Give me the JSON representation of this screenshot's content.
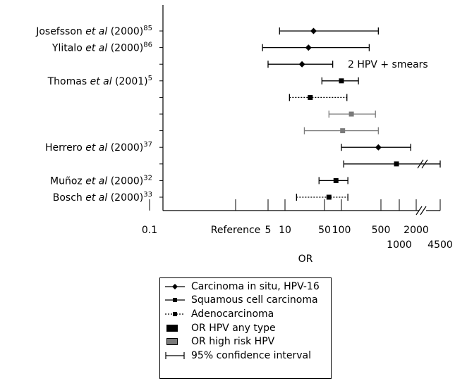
{
  "chart_data": {
    "type": "forest",
    "xlabel": "OR",
    "x_scale": "log",
    "xlim": [
      0.1,
      4500
    ],
    "x_ticks": [
      {
        "value": 0.1,
        "label": "0.1"
      },
      {
        "value": 1,
        "label": "Reference"
      },
      {
        "value": 5,
        "label": "5"
      },
      {
        "value": 10,
        "label": "10"
      },
      {
        "value": 50,
        "label": "50"
      },
      {
        "value": 100,
        "label": "100"
      },
      {
        "value": 500,
        "label": "500"
      },
      {
        "value": 1000,
        "label": "1000"
      },
      {
        "value": 2000,
        "label": "2000"
      },
      {
        "value": 4500,
        "label": "4500"
      }
    ],
    "axis_break": true,
    "rows": [
      {
        "study": "Josefsson",
        "suffix": " (2000)",
        "ref": "85",
        "outcome": "Carcinoma in situ, HPV-16",
        "hpv": "any type",
        "or": 32,
        "ci": [
          8,
          450
        ]
      },
      {
        "study": "Ylitalo",
        "suffix": " (2000)",
        "ref": "86",
        "outcome": "Carcinoma in situ, HPV-16",
        "hpv": "any type",
        "or": 26,
        "ci": [
          3.8,
          310
        ]
      },
      {
        "study": "",
        "suffix": "",
        "ref": "",
        "outcome": "Carcinoma in situ, HPV-16",
        "hpv": "any type",
        "or": 20,
        "ci": [
          5,
          70
        ],
        "annotation": "2 HPV + smears"
      },
      {
        "study": "Thomas",
        "suffix": " (2001)",
        "ref": "5",
        "outcome": "Squamous cell carcinoma",
        "hpv": "any type",
        "or": 100,
        "ci": [
          45,
          200
        ]
      },
      {
        "study": "",
        "suffix": "",
        "ref": "",
        "outcome": "Adenocarcinoma",
        "hpv": "any type",
        "or": 28,
        "ci": [
          12,
          125
        ]
      },
      {
        "study": "",
        "suffix": "",
        "ref": "",
        "outcome": "Squamous cell carcinoma",
        "hpv": "high risk",
        "or": 150,
        "ci": [
          60,
          400
        ]
      },
      {
        "study": "",
        "suffix": "",
        "ref": "",
        "outcome": "Squamous cell carcinoma",
        "hpv": "high risk",
        "or": 105,
        "ci": [
          22,
          450
        ]
      },
      {
        "study": "Herrero",
        "suffix": " (2000)",
        "ref": "37",
        "outcome": "Carcinoma in situ, HPV-16",
        "hpv": "any type",
        "or": 450,
        "ci": [
          100,
          1600
        ]
      },
      {
        "study": "",
        "suffix": "",
        "ref": "",
        "outcome": "Squamous cell carcinoma",
        "hpv": "any type",
        "or": 900,
        "ci": [
          110,
          4500
        ]
      },
      {
        "study": "Muñoz",
        "suffix": " (2000)",
        "ref": "32",
        "outcome": "Squamous cell carcinoma",
        "hpv": "any type",
        "or": 80,
        "ci": [
          40,
          130
        ]
      },
      {
        "study": "Bosch",
        "suffix": " (2000)",
        "ref": "33",
        "outcome": "Adenocarcinoma",
        "hpv": "any type",
        "or": 60,
        "ci": [
          16,
          130
        ]
      }
    ],
    "legend": [
      {
        "key": "cis",
        "label": "Carcinoma in situ, HPV-16"
      },
      {
        "key": "scc",
        "label": "Squamous cell carcinoma"
      },
      {
        "key": "adeno",
        "label": "Adenocarcinoma"
      },
      {
        "key": "any",
        "label": "OR HPV any type"
      },
      {
        "key": "high",
        "label": "OR high risk HPV"
      },
      {
        "key": "ci",
        "label": "95% confidence interval"
      }
    ],
    "colors": {
      "any": "#000000",
      "high": "#7a7a7a"
    },
    "italic_text": "et al"
  }
}
